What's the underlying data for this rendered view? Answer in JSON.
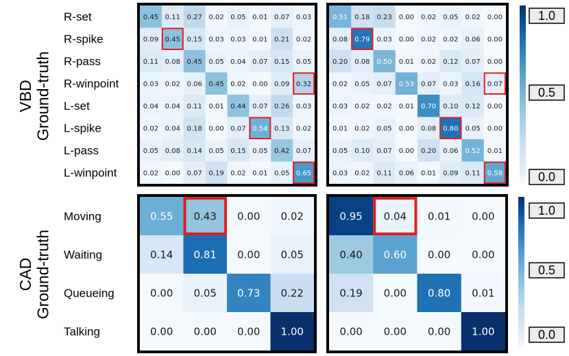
{
  "colors": {
    "low": "#f4f9fe",
    "high": "#08306b",
    "highlight": "#e02020",
    "frame": "#000000"
  },
  "chart_data": [
    {
      "type": "heatmap",
      "dataset": "VBD",
      "ylabel": "VBD\nGround-truth",
      "row_labels": [
        "R-set",
        "R-spike",
        "R-pass",
        "R-winpoint",
        "L-set",
        "L-spike",
        "L-pass",
        "L-winpoint"
      ],
      "colorbar": {
        "min": "0.0",
        "mid": "0.5",
        "max": "1.0"
      },
      "matrices": [
        {
          "values": [
            [
              0.45,
              0.11,
              0.27,
              0.02,
              0.05,
              0.01,
              0.07,
              0.03
            ],
            [
              0.09,
              0.45,
              0.15,
              0.03,
              0.03,
              0.01,
              0.21,
              0.02
            ],
            [
              0.11,
              0.08,
              0.45,
              0.05,
              0.04,
              0.07,
              0.15,
              0.05
            ],
            [
              0.03,
              0.02,
              0.06,
              0.45,
              0.02,
              0.0,
              0.09,
              0.32
            ],
            [
              0.04,
              0.04,
              0.11,
              0.01,
              0.44,
              0.07,
              0.26,
              0.03
            ],
            [
              0.02,
              0.04,
              0.18,
              0.0,
              0.07,
              0.54,
              0.13,
              0.02
            ],
            [
              0.05,
              0.08,
              0.14,
              0.05,
              0.15,
              0.05,
              0.42,
              0.07
            ],
            [
              0.02,
              0.0,
              0.07,
              0.19,
              0.02,
              0.01,
              0.05,
              0.65
            ]
          ],
          "highlighted": [
            [
              1,
              1
            ],
            [
              3,
              7
            ],
            [
              5,
              5
            ],
            [
              7,
              7
            ]
          ]
        },
        {
          "values": [
            [
              0.51,
              0.18,
              0.23,
              0.0,
              0.02,
              0.05,
              0.02,
              0.0
            ],
            [
              0.08,
              0.79,
              0.03,
              0.0,
              0.02,
              0.02,
              0.06,
              0.0
            ],
            [
              0.2,
              0.08,
              0.5,
              0.01,
              0.02,
              0.12,
              0.07,
              0.0
            ],
            [
              0.02,
              0.05,
              0.07,
              0.53,
              0.07,
              0.03,
              0.16,
              0.07
            ],
            [
              0.03,
              0.02,
              0.02,
              0.01,
              0.7,
              0.1,
              0.12,
              0.0
            ],
            [
              0.01,
              0.02,
              0.05,
              0.0,
              0.08,
              0.8,
              0.05,
              0.0
            ],
            [
              0.05,
              0.1,
              0.07,
              0.0,
              0.2,
              0.06,
              0.52,
              0.01
            ],
            [
              0.03,
              0.02,
              0.11,
              0.06,
              0.01,
              0.09,
              0.11,
              0.58
            ]
          ],
          "highlighted": [
            [
              1,
              1
            ],
            [
              3,
              7
            ],
            [
              5,
              5
            ],
            [
              7,
              7
            ]
          ]
        }
      ]
    },
    {
      "type": "heatmap",
      "dataset": "CAD",
      "ylabel": "CAD\nGround-truth",
      "row_labels": [
        "Moving",
        "Waiting",
        "Queueing",
        "Talking"
      ],
      "colorbar": {
        "min": "0.0",
        "mid": "0.5",
        "max": "1.0"
      },
      "matrices": [
        {
          "values": [
            [
              0.55,
              0.43,
              0.0,
              0.02
            ],
            [
              0.14,
              0.81,
              0.0,
              0.05
            ],
            [
              0.0,
              0.05,
              0.73,
              0.22
            ],
            [
              0.0,
              0.0,
              0.0,
              1.0
            ]
          ],
          "highlighted": [
            [
              0,
              1
            ]
          ]
        },
        {
          "values": [
            [
              0.95,
              0.04,
              0.01,
              0.0
            ],
            [
              0.4,
              0.6,
              0.0,
              0.0
            ],
            [
              0.19,
              0.0,
              0.8,
              0.01
            ],
            [
              0.0,
              0.0,
              0.0,
              1.0
            ]
          ],
          "highlighted": [
            [
              0,
              1
            ]
          ]
        }
      ]
    }
  ]
}
